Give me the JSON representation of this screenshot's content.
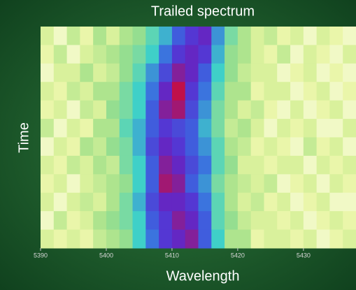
{
  "chart_data": {
    "type": "heatmap",
    "title": "Trailed spectrum",
    "xlabel": "Wavelength",
    "ylabel": "Time",
    "xlim": [
      5390,
      5438
    ],
    "xticks": [
      5390,
      5400,
      5410,
      5420,
      5430
    ],
    "bins": [
      5390,
      5392,
      5394,
      5396,
      5398,
      5400,
      5402,
      5404,
      5406,
      5408,
      5410,
      5412,
      5414,
      5416,
      5418,
      5420,
      5422,
      5424,
      5426,
      5428,
      5430,
      5432,
      5434,
      5436,
      5438
    ],
    "zlim": [
      0,
      1
    ],
    "colormap": [
      "#ffffff",
      "#e8f5a0",
      "#9fe08a",
      "#3fd0c8",
      "#3a6ae0",
      "#5a2ad0",
      "#c0104a"
    ],
    "z": [
      [
        0.2,
        0.1,
        0.25,
        0.15,
        0.3,
        0.2,
        0.3,
        0.35,
        0.45,
        0.55,
        0.7,
        0.8,
        0.85,
        0.6,
        0.4,
        0.3,
        0.2,
        0.25,
        0.15,
        0.2,
        0.1,
        0.2,
        0.15,
        0.1
      ],
      [
        0.15,
        0.25,
        0.1,
        0.2,
        0.25,
        0.3,
        0.35,
        0.4,
        0.5,
        0.65,
        0.8,
        0.85,
        0.8,
        0.55,
        0.35,
        0.3,
        0.2,
        0.15,
        0.25,
        0.1,
        0.2,
        0.15,
        0.1,
        0.2
      ],
      [
        0.1,
        0.2,
        0.2,
        0.3,
        0.2,
        0.25,
        0.35,
        0.45,
        0.6,
        0.75,
        0.9,
        0.85,
        0.7,
        0.5,
        0.35,
        0.25,
        0.2,
        0.2,
        0.1,
        0.15,
        0.2,
        0.1,
        0.15,
        0.1
      ],
      [
        0.2,
        0.15,
        0.25,
        0.2,
        0.3,
        0.3,
        0.4,
        0.5,
        0.65,
        0.85,
        1.0,
        0.8,
        0.65,
        0.45,
        0.3,
        0.3,
        0.15,
        0.2,
        0.2,
        0.1,
        0.15,
        0.2,
        0.1,
        0.15
      ],
      [
        0.15,
        0.2,
        0.1,
        0.25,
        0.2,
        0.35,
        0.4,
        0.5,
        0.7,
        0.9,
        0.95,
        0.75,
        0.6,
        0.4,
        0.3,
        0.2,
        0.25,
        0.15,
        0.1,
        0.2,
        0.1,
        0.15,
        0.2,
        0.1
      ],
      [
        0.25,
        0.1,
        0.2,
        0.15,
        0.3,
        0.3,
        0.45,
        0.55,
        0.7,
        0.8,
        0.75,
        0.7,
        0.55,
        0.4,
        0.25,
        0.3,
        0.2,
        0.1,
        0.2,
        0.15,
        0.2,
        0.1,
        0.1,
        0.2
      ],
      [
        0.1,
        0.2,
        0.15,
        0.3,
        0.25,
        0.35,
        0.4,
        0.55,
        0.75,
        0.85,
        0.8,
        0.7,
        0.6,
        0.45,
        0.3,
        0.25,
        0.15,
        0.2,
        0.15,
        0.1,
        0.25,
        0.15,
        0.2,
        0.1
      ],
      [
        0.2,
        0.15,
        0.25,
        0.2,
        0.3,
        0.25,
        0.4,
        0.5,
        0.7,
        0.9,
        0.85,
        0.75,
        0.65,
        0.45,
        0.35,
        0.2,
        0.2,
        0.15,
        0.2,
        0.2,
        0.1,
        0.2,
        0.15,
        0.2
      ],
      [
        0.15,
        0.2,
        0.1,
        0.2,
        0.25,
        0.3,
        0.35,
        0.5,
        0.7,
        0.95,
        0.9,
        0.7,
        0.6,
        0.4,
        0.3,
        0.25,
        0.2,
        0.25,
        0.1,
        0.15,
        0.2,
        0.1,
        0.2,
        0.15
      ],
      [
        0.2,
        0.1,
        0.2,
        0.25,
        0.2,
        0.3,
        0.4,
        0.55,
        0.75,
        0.85,
        0.85,
        0.8,
        0.65,
        0.45,
        0.3,
        0.2,
        0.25,
        0.15,
        0.2,
        0.1,
        0.15,
        0.2,
        0.1,
        0.1
      ],
      [
        0.1,
        0.25,
        0.15,
        0.2,
        0.3,
        0.35,
        0.4,
        0.5,
        0.7,
        0.8,
        0.9,
        0.85,
        0.7,
        0.45,
        0.35,
        0.25,
        0.2,
        0.2,
        0.15,
        0.2,
        0.1,
        0.15,
        0.2,
        0.15
      ],
      [
        0.2,
        0.15,
        0.2,
        0.15,
        0.25,
        0.3,
        0.35,
        0.5,
        0.65,
        0.8,
        0.85,
        0.9,
        0.7,
        0.5,
        0.3,
        0.3,
        0.15,
        0.2,
        0.2,
        0.15,
        0.2,
        0.1,
        0.15,
        0.2
      ]
    ]
  }
}
